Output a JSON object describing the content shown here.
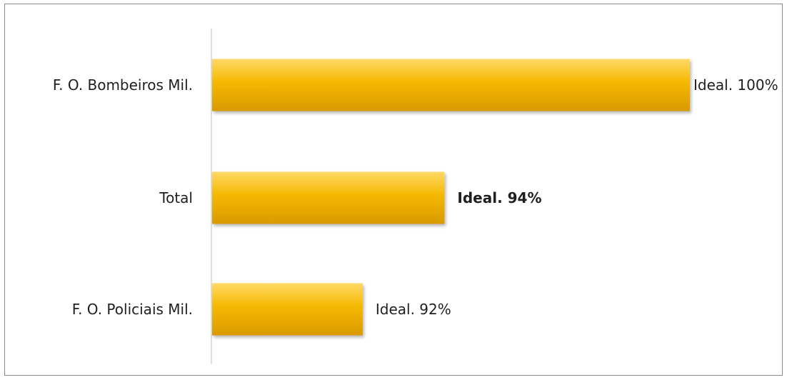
{
  "chart_data": {
    "type": "bar",
    "orientation": "horizontal",
    "categories": [
      "F. O. Bombeiros Mil.",
      "Total",
      "F. O. Policiais Mil."
    ],
    "values": [
      100,
      94,
      92
    ],
    "data_labels": [
      "Ideal. 100%",
      "Ideal. 94%",
      "Ideal. 92%"
    ],
    "bold_labels": [
      false,
      true,
      false
    ],
    "xlim": [
      88.3,
      100
    ],
    "title": "",
    "xlabel": "",
    "ylabel": "",
    "grid": false,
    "legend": "none",
    "colors": {
      "bar_top": "#ffd966",
      "bar_mid": "#f5b800",
      "bar_bottom": "#d99a00",
      "axis": "#c8c8c8",
      "frame": "#8a8a8a"
    }
  }
}
